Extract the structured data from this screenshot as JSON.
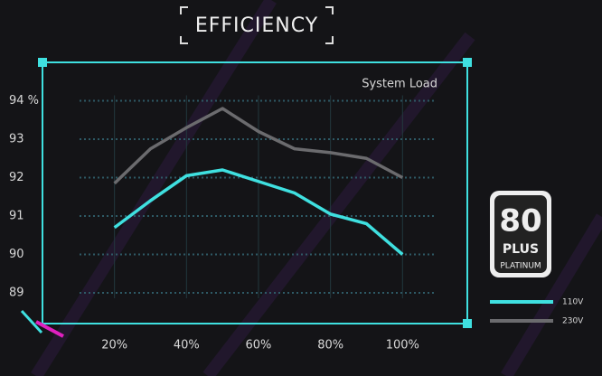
{
  "chart_data": {
    "type": "line",
    "title": "EFFICIENCY",
    "annotation": "System Load",
    "logo": {
      "number": "80",
      "plus": "PLUS",
      "grade": "PLATINUM"
    },
    "x": [
      20,
      30,
      40,
      50,
      60,
      70,
      80,
      90,
      100
    ],
    "series": [
      {
        "name": "110V",
        "color": "#3fe0e0",
        "values": [
          90.7,
          91.4,
          92.05,
          92.2,
          91.9,
          91.6,
          91.05,
          90.8,
          90.0
        ]
      },
      {
        "name": "230V",
        "color": "#6b6b6e",
        "values": [
          91.85,
          92.75,
          93.3,
          93.8,
          93.2,
          92.75,
          92.65,
          92.5,
          92.0
        ]
      }
    ],
    "xlim": [
      0,
      118
    ],
    "xticks": [
      {
        "value": 20,
        "label": "20%"
      },
      {
        "value": 40,
        "label": "40%"
      },
      {
        "value": 60,
        "label": "60%"
      },
      {
        "value": 80,
        "label": "80%"
      },
      {
        "value": 100,
        "label": "100%"
      }
    ],
    "ylim": [
      88.2,
      95
    ],
    "yticks": [
      89,
      90,
      91,
      92,
      93,
      {
        "value": 94,
        "label": "94 %"
      }
    ],
    "grid": true,
    "legend": "bottom-right"
  }
}
